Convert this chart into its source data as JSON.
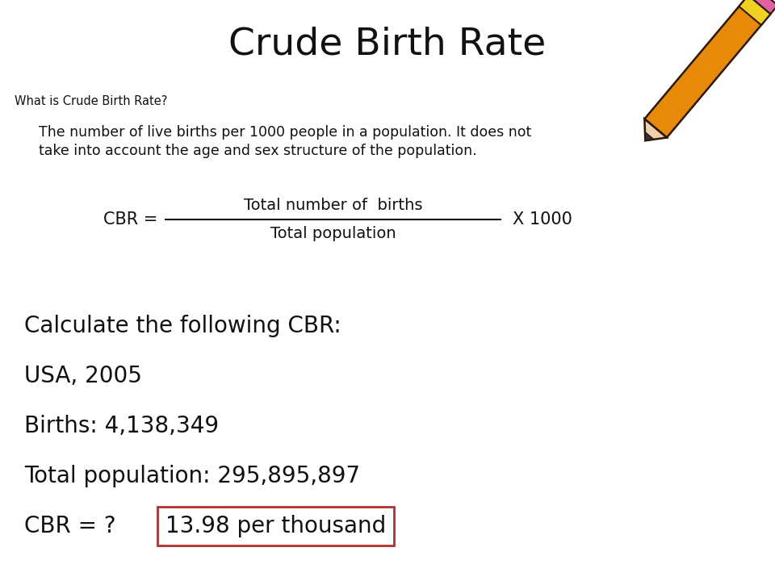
{
  "title": "Crude Birth Rate",
  "subtitle": "What is Crude Birth Rate?",
  "body_line1": "The number of live births per 1000 people in a population. It does not",
  "body_line2": "take into account the age and sex structure of the population.",
  "formula_label": "CBR =",
  "formula_numerator": "Total number of  births",
  "formula_denominator": "Total population",
  "formula_multiplier": "X 1000",
  "calc_lines": [
    "Calculate the following CBR:",
    "USA, 2005",
    "Births: 4,138,349",
    "Total population: 295,895,897",
    "CBR = ?"
  ],
  "answer_text": "13.98 per thousand",
  "answer_box_color": "#b03030",
  "background_color": "#ffffff",
  "title_fontsize": 34,
  "subtitle_fontsize": 10.5,
  "body_fontsize": 12.5,
  "formula_fontsize": 13,
  "calc_fontsize": 20,
  "answer_fontsize": 20,
  "pencil_body_color": "#E8890A",
  "pencil_outline_color": "#2a1800",
  "pencil_tip_color": "#f0d0b0",
  "pencil_eraser_color": "#E060A0",
  "pencil_band_color": "#F0D020"
}
